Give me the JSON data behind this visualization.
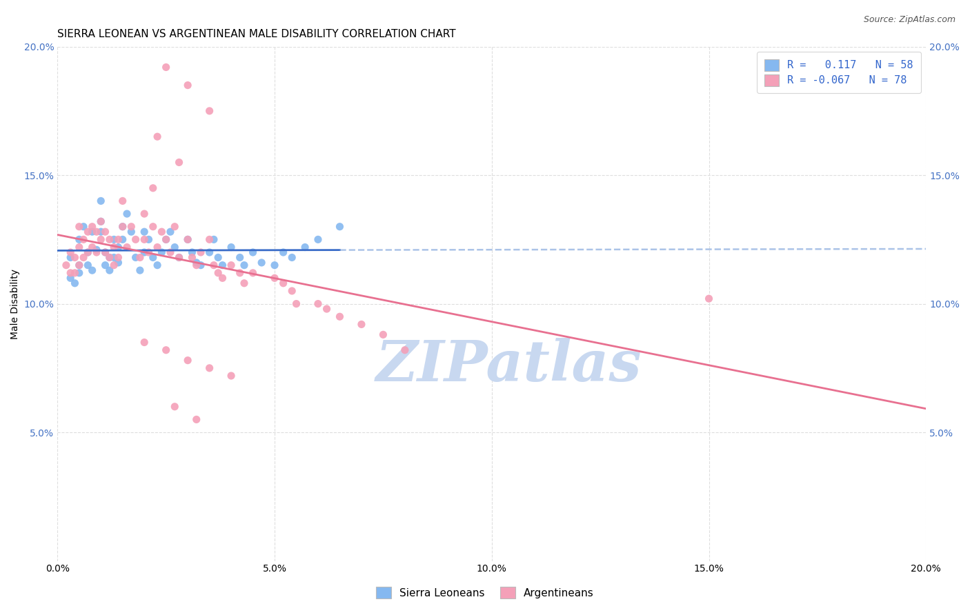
{
  "title": "SIERRA LEONEAN VS ARGENTINEAN MALE DISABILITY CORRELATION CHART",
  "source": "Source: ZipAtlas.com",
  "ylabel": "Male Disability",
  "xlim": [
    0.0,
    0.2
  ],
  "ylim": [
    0.0,
    0.2
  ],
  "xtick_vals": [
    0.0,
    0.05,
    0.1,
    0.15,
    0.2
  ],
  "xtick_labels": [
    "0.0%",
    "5.0%",
    "10.0%",
    "15.0%",
    "20.0%"
  ],
  "ytick_vals": [
    0.05,
    0.1,
    0.15,
    0.2
  ],
  "ytick_labels": [
    "5.0%",
    "10.0%",
    "15.0%",
    "20.0%"
  ],
  "blue_R": 0.117,
  "blue_N": 58,
  "pink_R": -0.067,
  "pink_N": 78,
  "blue_color": "#85B8F0",
  "pink_color": "#F4A0B8",
  "blue_line_color": "#3A6CC8",
  "pink_line_color": "#E87090",
  "blue_dash_color": "#88AADE",
  "grid_color": "#DEDEDE",
  "background_color": "#FFFFFF",
  "watermark_text": "ZIPatlas",
  "watermark_color": "#C8D8F0",
  "legend_label_blue": "Sierra Leoneans",
  "legend_label_pink": "Argentineans",
  "title_fontsize": 11,
  "axis_label_fontsize": 10,
  "tick_fontsize": 10,
  "source_fontsize": 9,
  "legend_fontsize": 11,
  "blue_x": [
    0.003,
    0.003,
    0.004,
    0.005,
    0.005,
    0.005,
    0.006,
    0.007,
    0.007,
    0.008,
    0.008,
    0.009,
    0.01,
    0.01,
    0.01,
    0.011,
    0.011,
    0.012,
    0.012,
    0.013,
    0.013,
    0.014,
    0.014,
    0.015,
    0.015,
    0.016,
    0.017,
    0.018,
    0.019,
    0.02,
    0.02,
    0.021,
    0.022,
    0.023,
    0.024,
    0.025,
    0.026,
    0.027,
    0.028,
    0.03,
    0.031,
    0.032,
    0.033,
    0.035,
    0.036,
    0.037,
    0.038,
    0.04,
    0.042,
    0.043,
    0.045,
    0.047,
    0.05,
    0.052,
    0.054,
    0.057,
    0.06,
    0.065
  ],
  "blue_y": [
    0.118,
    0.11,
    0.108,
    0.125,
    0.115,
    0.112,
    0.13,
    0.12,
    0.115,
    0.128,
    0.113,
    0.121,
    0.14,
    0.132,
    0.128,
    0.12,
    0.115,
    0.118,
    0.113,
    0.125,
    0.118,
    0.122,
    0.116,
    0.13,
    0.125,
    0.135,
    0.128,
    0.118,
    0.113,
    0.128,
    0.12,
    0.125,
    0.118,
    0.115,
    0.12,
    0.125,
    0.128,
    0.122,
    0.118,
    0.125,
    0.12,
    0.116,
    0.115,
    0.12,
    0.125,
    0.118,
    0.115,
    0.122,
    0.118,
    0.115,
    0.12,
    0.116,
    0.115,
    0.12,
    0.118,
    0.122,
    0.125,
    0.13
  ],
  "pink_x": [
    0.002,
    0.003,
    0.003,
    0.004,
    0.004,
    0.005,
    0.005,
    0.005,
    0.006,
    0.006,
    0.007,
    0.007,
    0.008,
    0.008,
    0.009,
    0.009,
    0.01,
    0.01,
    0.011,
    0.011,
    0.012,
    0.012,
    0.013,
    0.013,
    0.014,
    0.014,
    0.015,
    0.015,
    0.016,
    0.017,
    0.018,
    0.019,
    0.02,
    0.02,
    0.021,
    0.022,
    0.023,
    0.024,
    0.025,
    0.026,
    0.027,
    0.028,
    0.03,
    0.031,
    0.032,
    0.033,
    0.035,
    0.036,
    0.037,
    0.038,
    0.04,
    0.042,
    0.043,
    0.045,
    0.05,
    0.052,
    0.054,
    0.055,
    0.06,
    0.062,
    0.065,
    0.07,
    0.075,
    0.08,
    0.02,
    0.025,
    0.03,
    0.035,
    0.04,
    0.025,
    0.03,
    0.035,
    0.023,
    0.028,
    0.022,
    0.027,
    0.032,
    0.15
  ],
  "pink_y": [
    0.115,
    0.12,
    0.112,
    0.118,
    0.112,
    0.13,
    0.122,
    0.115,
    0.125,
    0.118,
    0.128,
    0.12,
    0.13,
    0.122,
    0.128,
    0.12,
    0.132,
    0.125,
    0.128,
    0.12,
    0.125,
    0.118,
    0.122,
    0.115,
    0.125,
    0.118,
    0.14,
    0.13,
    0.122,
    0.13,
    0.125,
    0.118,
    0.135,
    0.125,
    0.12,
    0.13,
    0.122,
    0.128,
    0.125,
    0.12,
    0.13,
    0.118,
    0.125,
    0.118,
    0.115,
    0.12,
    0.125,
    0.115,
    0.112,
    0.11,
    0.115,
    0.112,
    0.108,
    0.112,
    0.11,
    0.108,
    0.105,
    0.1,
    0.1,
    0.098,
    0.095,
    0.092,
    0.088,
    0.082,
    0.085,
    0.082,
    0.078,
    0.075,
    0.072,
    0.192,
    0.185,
    0.175,
    0.165,
    0.155,
    0.145,
    0.06,
    0.055,
    0.102
  ]
}
